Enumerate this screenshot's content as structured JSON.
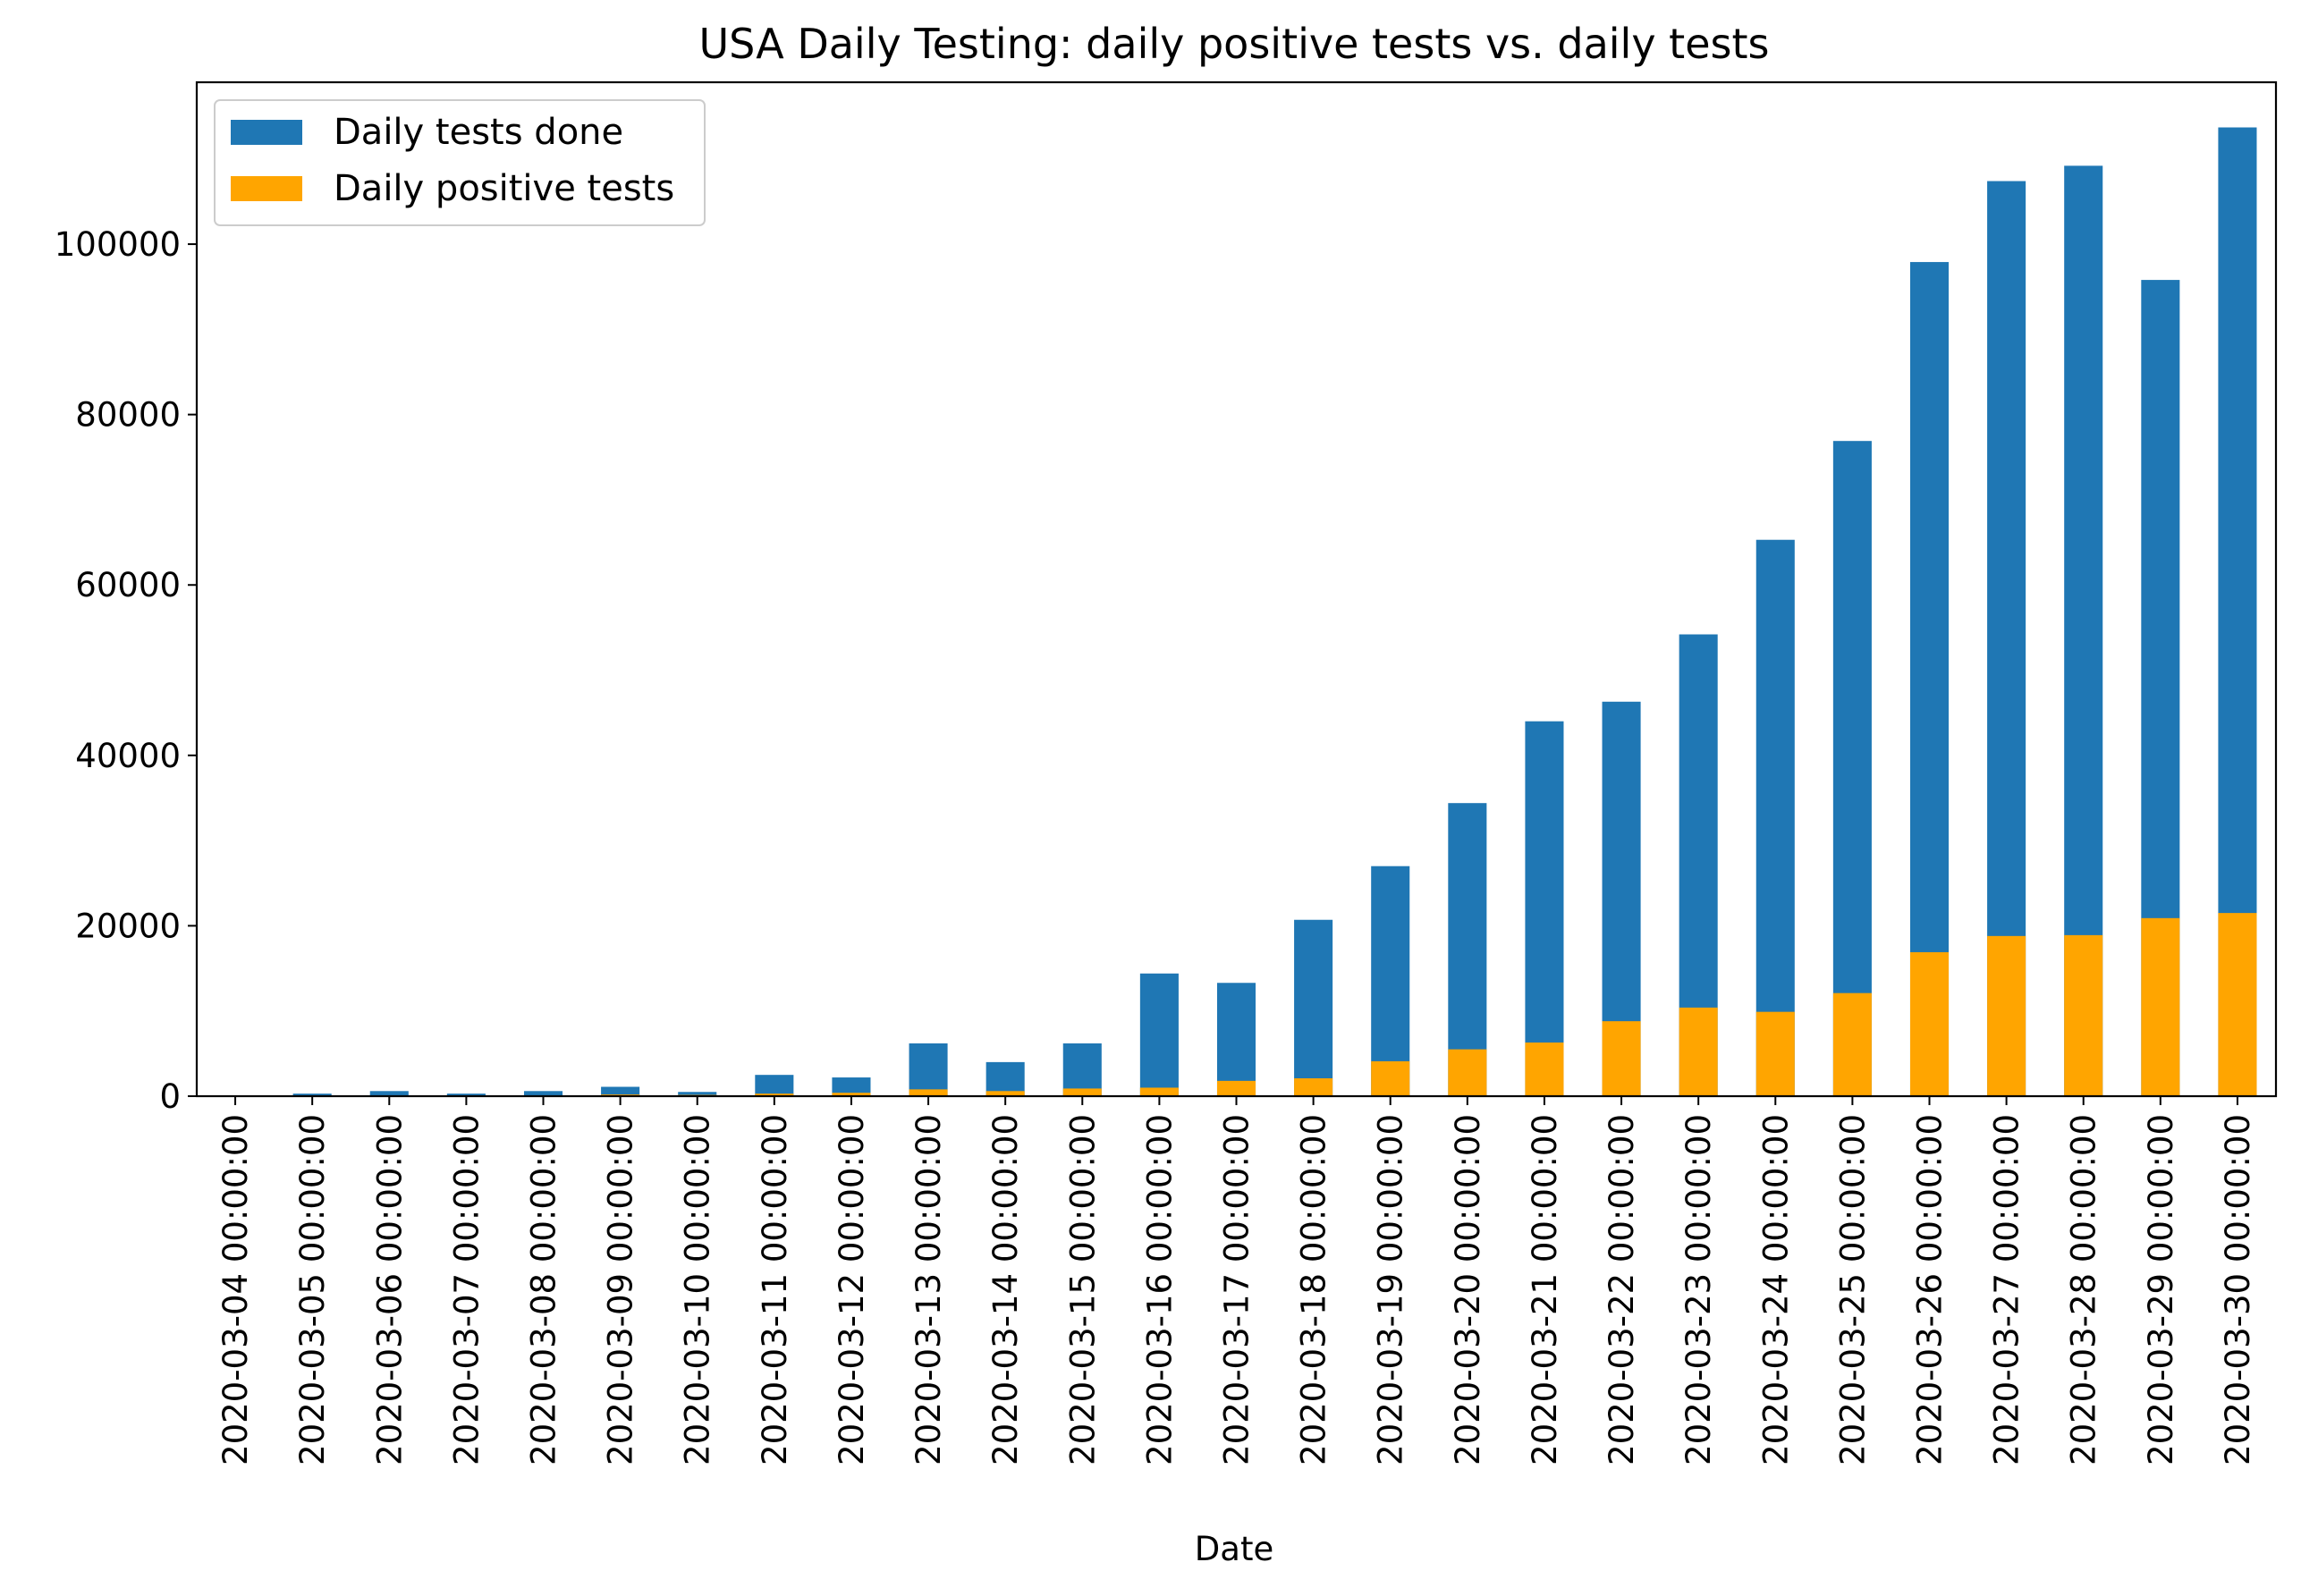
{
  "chart_data": {
    "type": "bar",
    "stacked": false,
    "title": "USA Daily Testing: daily positive tests vs. daily tests",
    "xlabel": "Date",
    "ylabel": "",
    "ylim": [
      0,
      119000
    ],
    "yticks": [
      0,
      20000,
      40000,
      60000,
      80000,
      100000
    ],
    "ytick_labels": [
      "0",
      "20000",
      "40000",
      "60000",
      "80000",
      "100000"
    ],
    "grid": false,
    "legend_position": "upper-left",
    "categories": [
      "2020-03-04 00:00:00",
      "2020-03-05 00:00:00",
      "2020-03-06 00:00:00",
      "2020-03-07 00:00:00",
      "2020-03-08 00:00:00",
      "2020-03-09 00:00:00",
      "2020-03-10 00:00:00",
      "2020-03-11 00:00:00",
      "2020-03-12 00:00:00",
      "2020-03-13 00:00:00",
      "2020-03-14 00:00:00",
      "2020-03-15 00:00:00",
      "2020-03-16 00:00:00",
      "2020-03-17 00:00:00",
      "2020-03-18 00:00:00",
      "2020-03-19 00:00:00",
      "2020-03-20 00:00:00",
      "2020-03-21 00:00:00",
      "2020-03-22 00:00:00",
      "2020-03-23 00:00:00",
      "2020-03-24 00:00:00",
      "2020-03-25 00:00:00",
      "2020-03-26 00:00:00",
      "2020-03-27 00:00:00",
      "2020-03-28 00:00:00",
      "2020-03-29 00:00:00",
      "2020-03-30 00:00:00"
    ],
    "series": [
      {
        "name": "Daily tests done",
        "color": "#1f77b4",
        "values": [
          0,
          300,
          600,
          300,
          600,
          1100,
          500,
          2500,
          2200,
          6200,
          4000,
          6200,
          14400,
          13300,
          20700,
          27000,
          34400,
          44000,
          46300,
          54200,
          65300,
          76900,
          97900,
          107400,
          109200,
          95800,
          113700
        ]
      },
      {
        "name": "Daily positive tests",
        "color": "#ffa500",
        "values": [
          0,
          50,
          100,
          50,
          100,
          200,
          150,
          300,
          400,
          800,
          600,
          900,
          1000,
          1800,
          2100,
          4100,
          5500,
          6300,
          8800,
          10400,
          9900,
          12100,
          16900,
          18800,
          18900,
          20900,
          21500
        ]
      }
    ]
  }
}
